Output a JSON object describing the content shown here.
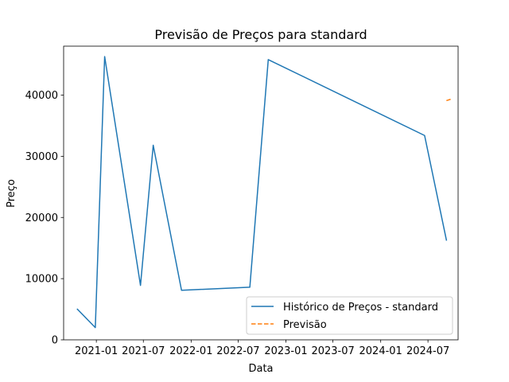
{
  "chart_data": {
    "type": "line",
    "title": "Previsão de Preços para standard",
    "xlabel": "Data",
    "ylabel": "Preço",
    "x_axis_type": "date",
    "xlim": [
      "2020-08-28",
      "2024-10-25"
    ],
    "ylim": [
      0,
      48000
    ],
    "x_ticks": [
      {
        "value": "2021-01-01",
        "label": "2021-01"
      },
      {
        "value": "2021-07-01",
        "label": "2021-07"
      },
      {
        "value": "2022-01-01",
        "label": "2022-01"
      },
      {
        "value": "2022-07-01",
        "label": "2022-07"
      },
      {
        "value": "2023-01-01",
        "label": "2023-01"
      },
      {
        "value": "2023-07-01",
        "label": "2023-07"
      },
      {
        "value": "2024-01-01",
        "label": "2024-01"
      },
      {
        "value": "2024-07-01",
        "label": "2024-07"
      }
    ],
    "y_ticks": [
      0,
      10000,
      20000,
      30000,
      40000
    ],
    "grid": false,
    "legend_position": "lower-right",
    "series": [
      {
        "name": "Histórico de Preços - standard",
        "color": "#1f77b4",
        "style": "solid",
        "x": [
          "2020-10-20",
          "2020-12-28",
          "2021-02-02",
          "2021-06-20",
          "2021-08-08",
          "2021-11-25",
          "2022-08-15",
          "2022-10-25",
          "2024-06-18",
          "2024-09-10"
        ],
        "y": [
          5000,
          2000,
          46300,
          8900,
          31800,
          8100,
          8600,
          45800,
          33400,
          16300
        ]
      },
      {
        "name": "Previsão",
        "color": "#ff7f0e",
        "style": "dashed",
        "x": [
          "2024-09-10",
          "2024-10-02"
        ],
        "y": [
          39100,
          39400
        ]
      }
    ]
  }
}
